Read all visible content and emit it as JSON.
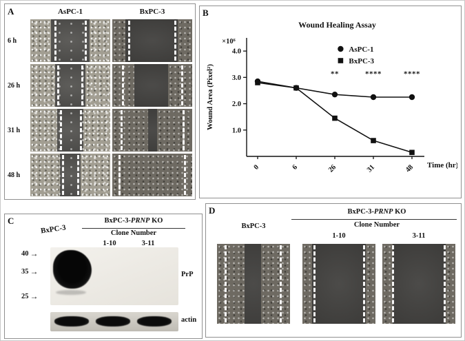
{
  "panels": {
    "a": {
      "label": "A",
      "columns": [
        "AsPC-1",
        "BxPC-3"
      ],
      "rows": [
        "6 h",
        "26 h",
        "31 h",
        "48 h"
      ]
    },
    "b": {
      "label": "B"
    },
    "c": {
      "label": "C",
      "lane": "BxPC-3",
      "ko_prefix": "BxPC-3-",
      "ko_gene": "PRNP",
      "ko_suffix": " KO",
      "clone_header": "Clone Number",
      "clones": [
        "1-10",
        "3-11"
      ],
      "mw": [
        "40",
        "35",
        "25"
      ],
      "arrow": "→",
      "blot_label": "PrP",
      "loading_label": "actin"
    },
    "d": {
      "label": "D",
      "ko_prefix": "BxPC-3-",
      "ko_gene": "PRNP",
      "ko_suffix": " KO",
      "parental": "BxPC-3",
      "clone_header": "Clone Number",
      "clones": [
        "1-10",
        "3-11"
      ]
    }
  },
  "chart_data": {
    "type": "line",
    "title": "Wound Healing Assay",
    "x_categories": [
      "0",
      "6",
      "26",
      "31",
      "48"
    ],
    "xlabel": "Time (hr)",
    "ylabel": "Wound Area (Pixel²)",
    "y_multiplier_label": "×10⁶",
    "ylim": [
      0,
      4.5
    ],
    "yticks": [
      1.0,
      2.0,
      3.0,
      4.0
    ],
    "ytick_labels": [
      "1.0",
      "2.0",
      "3.0",
      "4.0"
    ],
    "grid": false,
    "legend_position": "top-right",
    "line_color": "#111111",
    "series": [
      {
        "name": "AsPC-1",
        "marker": "circle",
        "values": [
          2.85,
          2.6,
          2.35,
          2.25,
          2.25
        ]
      },
      {
        "name": "BxPC-3",
        "marker": "square",
        "values": [
          2.8,
          2.6,
          1.45,
          0.6,
          0.15
        ]
      }
    ],
    "annotations": [
      {
        "x_index": 2,
        "text": "**",
        "y": 3.05
      },
      {
        "x_index": 3,
        "text": "****",
        "y": 3.05
      },
      {
        "x_index": 4,
        "text": "****",
        "y": 3.05
      }
    ]
  }
}
